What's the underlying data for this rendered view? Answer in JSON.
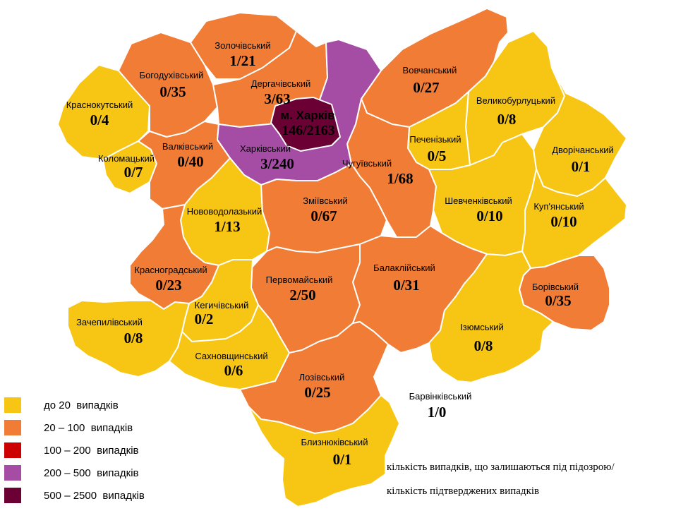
{
  "colors": {
    "lt20": "#f7c614",
    "20_100": "#f07c35",
    "100_200": "#cc0000",
    "200_500": "#a54ca5",
    "500_2500": "#6a0034",
    "none": "#ffffff"
  },
  "regions": [
    {
      "id": "krasnokutskyi",
      "name": "Краснокутський",
      "value": "0/4",
      "color": "lt20"
    },
    {
      "id": "kolomatskyi",
      "name": "Коломацький",
      "value": "0/7",
      "color": "lt20"
    },
    {
      "id": "bohodukhivskyi",
      "name": "Богодухівський",
      "value": "0/35",
      "color": "20_100"
    },
    {
      "id": "zolochivskyi",
      "name": "Золочівський",
      "value": "1/21",
      "color": "20_100"
    },
    {
      "id": "derhachivskyi",
      "name": "Дергачівський",
      "value": "3/63",
      "color": "20_100"
    },
    {
      "id": "valkivskyi",
      "name": "Валківський",
      "value": "0/40",
      "color": "20_100"
    },
    {
      "id": "kharkivskyi",
      "name": "Харківський",
      "value": "3/240",
      "color": "200_500"
    },
    {
      "id": "vovchanskyi",
      "name": "Вовчанський",
      "value": "0/27",
      "color": "20_100"
    },
    {
      "id": "velykoburlutskyi",
      "name": "Великобурлуцький",
      "value": "0/8",
      "color": "lt20"
    },
    {
      "id": "pechenizkyi",
      "name": "Печенізький",
      "value": "0/5",
      "color": "lt20"
    },
    {
      "id": "dvorichanskyi",
      "name": "Дворічанський",
      "value": "0/1",
      "color": "lt20"
    },
    {
      "id": "chuhuivskyi",
      "name": "Чугуївський",
      "value": "1/68",
      "color": "20_100"
    },
    {
      "id": "novovodolazkyi",
      "name": "Нововодолазький",
      "value": "1/13",
      "color": "lt20"
    },
    {
      "id": "zmiivskyi",
      "name": "Зміївський",
      "value": "0/67",
      "color": "20_100"
    },
    {
      "id": "shevchenkivskyi",
      "name": "Шевченківський",
      "value": "0/10",
      "color": "lt20"
    },
    {
      "id": "kupianskyi",
      "name": "Куп'янський",
      "value": "0/10",
      "color": "lt20"
    },
    {
      "id": "krasnohradskyi",
      "name": "Красноградський",
      "value": "0/23",
      "color": "20_100"
    },
    {
      "id": "pervomaiskyi",
      "name": "Первомайський",
      "value": "2/50",
      "color": "20_100"
    },
    {
      "id": "balakliiskyi",
      "name": "Балаклійський",
      "value": "0/31",
      "color": "20_100"
    },
    {
      "id": "borivskyi",
      "name": "Борівський",
      "value": "0/35",
      "color": "20_100"
    },
    {
      "id": "kehychivskyi",
      "name": "Кегичівський",
      "value": "0/2",
      "color": "lt20"
    },
    {
      "id": "zachepylivskyi",
      "name": "Зачепилівський",
      "value": "0/8",
      "color": "lt20"
    },
    {
      "id": "izyumskyi",
      "name": "Ізюмський",
      "value": "0/8",
      "color": "lt20"
    },
    {
      "id": "sakhnovshchynskyi",
      "name": "Сахновщинський",
      "value": "0/6",
      "color": "lt20"
    },
    {
      "id": "lozivskyi",
      "name": "Лозівський",
      "value": "0/25",
      "color": "20_100"
    },
    {
      "id": "barvinkivskyi",
      "name": "Барвінківський",
      "value": "1/0",
      "color": "none"
    },
    {
      "id": "blyzniukivskyi",
      "name": "Близнюківський",
      "value": "0/1",
      "color": "lt20"
    }
  ],
  "city": {
    "name": "м. Харків",
    "value": "146/2163",
    "color": "500_2500"
  },
  "legend": [
    {
      "label": "до 20  випадків",
      "color": "lt20"
    },
    {
      "label": "20 – 100  випадків",
      "color": "20_100"
    },
    {
      "label": "100 – 200  випадків",
      "color": "100_200"
    },
    {
      "label": "200 – 500  випадків",
      "color": "200_500"
    },
    {
      "label": "500 – 2500  випадків",
      "color": "500_2500"
    }
  ],
  "note": {
    "line1": "кількість випадків, що залишаються під підозрою/",
    "line2": "кількість підтверджених випадків"
  }
}
